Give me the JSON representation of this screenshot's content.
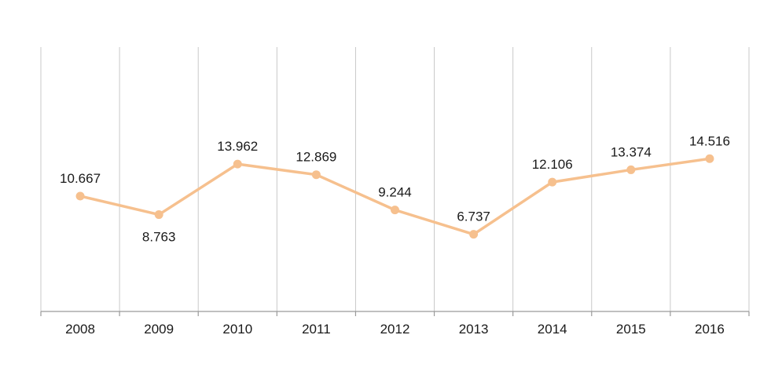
{
  "chart_data": {
    "type": "line",
    "title": "",
    "xlabel": "",
    "ylabel": "",
    "categories": [
      "2008",
      "2009",
      "2010",
      "2011",
      "2012",
      "2013",
      "2014",
      "2015",
      "2016"
    ],
    "series": [
      {
        "values": [
          10.667,
          8.763,
          13.962,
          12.869,
          9.244,
          6.737,
          12.106,
          13.374,
          14.516
        ],
        "labels": [
          "10.667",
          "8.763",
          "13.962",
          "12.869",
          "9.244",
          "6.737",
          "12.106",
          "13.374",
          "14.516"
        ],
        "color": "#f6c08e",
        "label_positions": [
          "above",
          "below",
          "above",
          "above",
          "above",
          "above",
          "above",
          "above",
          "above"
        ]
      }
    ],
    "ylim": [
      -1.2,
      26
    ],
    "y_axis_visible": false,
    "grid": "vertical",
    "legend": "none"
  }
}
